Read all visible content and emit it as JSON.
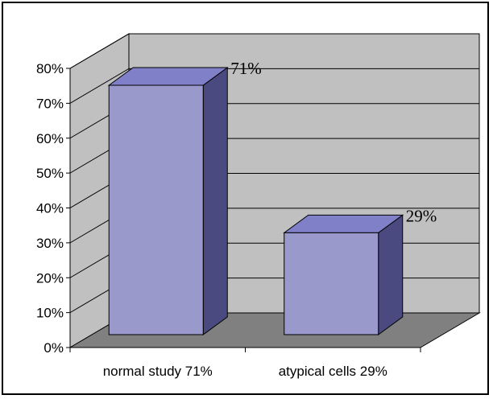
{
  "chart_data": {
    "type": "bar",
    "style": "3d-column",
    "categories": [
      "normal study 71%",
      "atypical cells 29%"
    ],
    "values": [
      71,
      29
    ],
    "data_labels": [
      "71%",
      "29%"
    ],
    "ylim": [
      0,
      80
    ],
    "ytick_step": 10,
    "ytick_format": "{v}%",
    "grid": true,
    "legend": "none",
    "title": "",
    "xlabel": "",
    "ylabel": "",
    "colors": {
      "bar_front": "#9999CC",
      "bar_side": "#4A4A80",
      "bar_top": "#8080C8",
      "back_wall": "#C0C0C0",
      "side_wall": "#C0C0C0",
      "floor": "#808080",
      "gridline": "#000000"
    }
  }
}
